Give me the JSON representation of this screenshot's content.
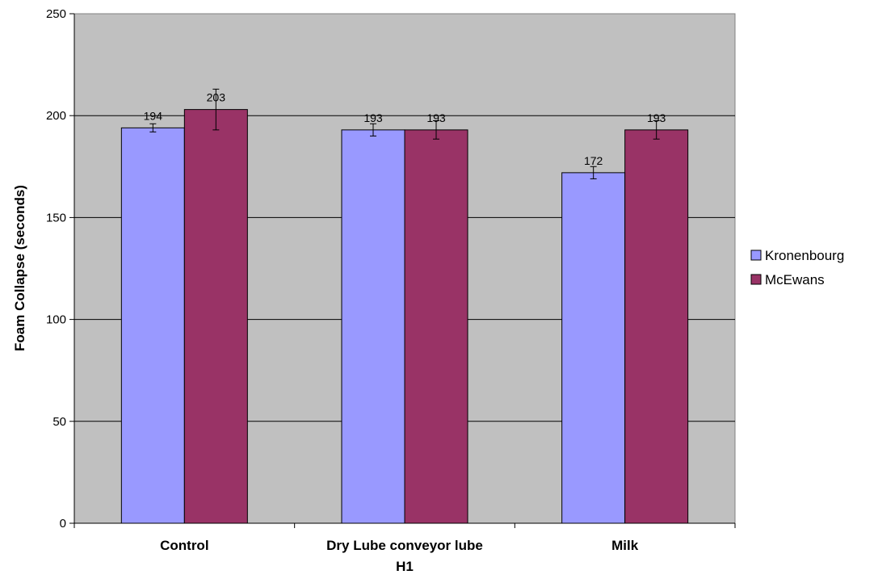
{
  "chart_data": {
    "type": "bar",
    "title": "",
    "xlabel": "",
    "ylabel": "Foam Collapse (seconds)",
    "ylim": [
      0,
      250
    ],
    "yticks": [
      0,
      50,
      100,
      150,
      200,
      250
    ],
    "grid": true,
    "legend_position": "right",
    "categories": [
      [
        "Control"
      ],
      [
        "Dry Lube conveyor lube",
        "H1"
      ],
      [
        "Milk"
      ]
    ],
    "series": [
      {
        "name": "Kronenbourg",
        "color": "#9999ff",
        "values": [
          194,
          193,
          172
        ],
        "error": [
          2,
          3,
          3
        ],
        "labels": [
          "194",
          "193",
          "172"
        ]
      },
      {
        "name": "McEwans",
        "color": "#993366",
        "values": [
          203,
          193,
          193
        ],
        "error": [
          10,
          4.5,
          4.5
        ],
        "labels": [
          "203",
          "193",
          "193"
        ]
      }
    ],
    "colors": {
      "plot_background": "#c0c0c0",
      "gridline": "#000000"
    }
  }
}
